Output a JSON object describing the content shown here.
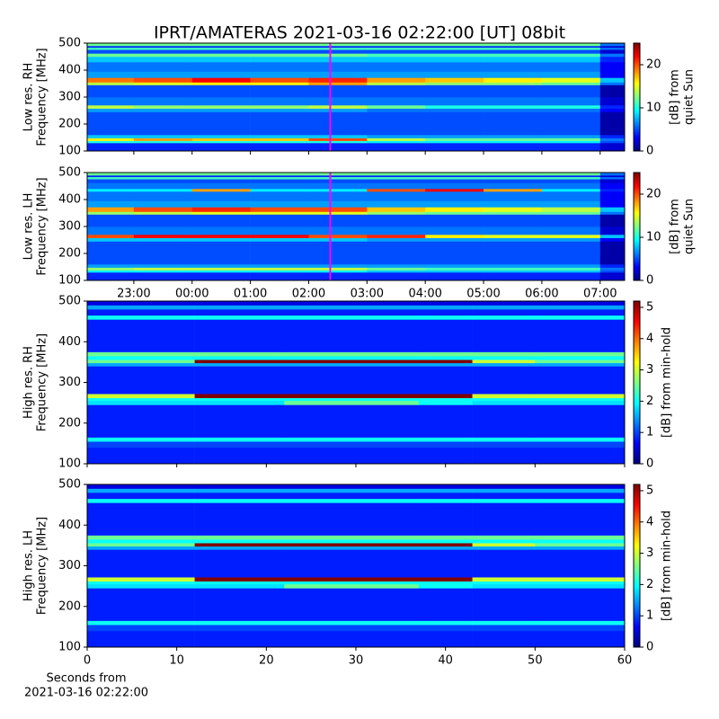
{
  "title": "IPRT/AMATERAS 2021-03-16 02:22:00 [UT]   08bit",
  "chart_data": [
    {
      "type": "heatmap",
      "ylabel_lines": [
        "Low res. RH",
        "Frequency [MHz]"
      ],
      "xlim": [
        22.2,
        31.42
      ],
      "xticks": [
        23,
        24,
        25,
        26,
        27,
        28,
        29,
        30,
        31
      ],
      "show_xtick_labels": false,
      "ylim": [
        100,
        500
      ],
      "yticks": [
        100,
        200,
        300,
        400,
        500
      ],
      "marker_x": 26.37,
      "marker_color": "#ff00ff",
      "clim": [
        0,
        25
      ],
      "cticks": [
        0,
        10,
        20
      ],
      "clabel_lines": [
        "[dB] from",
        "quiet Sun"
      ],
      "colormap": "jet",
      "xbins": [
        22.2,
        23,
        24,
        25,
        26,
        27,
        28,
        29,
        30,
        31,
        31.42
      ],
      "ybins": [
        100,
        130,
        138,
        148,
        160,
        245,
        258,
        270,
        300,
        345,
        355,
        372,
        395,
        430,
        450,
        462,
        476,
        484,
        490,
        500
      ],
      "values": [
        [
          4,
          4,
          4,
          4,
          4,
          4,
          4,
          4,
          4,
          2
        ],
        [
          10,
          10,
          10,
          10,
          10,
          9,
          9,
          9,
          9,
          5
        ],
        [
          16,
          18,
          17,
          17,
          20,
          14,
          12,
          12,
          12,
          6
        ],
        [
          8,
          8,
          8,
          8,
          8,
          7,
          7,
          7,
          7,
          4
        ],
        [
          5,
          5,
          5,
          5,
          5,
          5,
          5,
          5,
          5,
          1
        ],
        [
          7,
          7,
          7,
          7,
          7,
          6,
          6,
          6,
          6,
          3
        ],
        [
          14,
          13,
          13,
          13,
          14,
          12,
          10,
          10,
          10,
          4
        ],
        [
          6,
          6,
          6,
          6,
          6,
          6,
          6,
          6,
          6,
          2
        ],
        [
          5,
          5,
          5,
          5,
          5,
          5,
          5,
          5,
          5,
          1
        ],
        [
          14,
          15,
          16,
          16,
          18,
          14,
          13,
          13,
          12,
          6
        ],
        [
          19,
          20,
          22,
          20,
          21,
          18,
          17,
          16,
          15,
          8
        ],
        [
          7,
          7,
          7,
          7,
          7,
          7,
          7,
          7,
          7,
          3
        ],
        [
          6,
          6,
          6,
          6,
          6,
          6,
          6,
          6,
          6,
          3
        ],
        [
          8,
          8,
          8,
          8,
          8,
          8,
          8,
          8,
          8,
          4
        ],
        [
          12,
          12,
          12,
          12,
          12,
          11,
          11,
          11,
          11,
          6
        ],
        [
          5,
          5,
          5,
          5,
          5,
          5,
          5,
          5,
          5,
          2
        ],
        [
          11,
          11,
          11,
          11,
          11,
          11,
          11,
          11,
          11,
          6
        ],
        [
          4,
          4,
          4,
          4,
          4,
          4,
          4,
          4,
          4,
          2
        ],
        [
          12,
          12,
          12,
          12,
          12,
          12,
          12,
          12,
          12,
          6
        ]
      ]
    },
    {
      "type": "heatmap",
      "ylabel_lines": [
        "Low res. LH",
        "Frequency [MHz]"
      ],
      "xlim": [
        22.2,
        31.42
      ],
      "xticks": [
        {
          "value": 23,
          "label": "23:00"
        },
        {
          "value": 24,
          "label": "00:00"
        },
        {
          "value": 25,
          "label": "01:00"
        },
        {
          "value": 26,
          "label": "02:00"
        },
        {
          "value": 27,
          "label": "03:00"
        },
        {
          "value": 28,
          "label": "04:00"
        },
        {
          "value": 29,
          "label": "05:00"
        },
        {
          "value": 30,
          "label": "06:00"
        },
        {
          "value": 31,
          "label": "07:00"
        }
      ],
      "show_xtick_labels": true,
      "ylim": [
        100,
        500
      ],
      "yticks": [
        100,
        200,
        300,
        400,
        500
      ],
      "marker_x": 26.37,
      "marker_color": "#ff00ff",
      "clim": [
        0,
        25
      ],
      "cticks": [
        0,
        10,
        20
      ],
      "clabel_lines": [
        "[dB] from",
        "quiet Sun"
      ],
      "colormap": "jet",
      "xbins": [
        22.2,
        23,
        24,
        25,
        26,
        27,
        28,
        29,
        30,
        31,
        31.42
      ],
      "ybins": [
        100,
        130,
        138,
        148,
        160,
        245,
        258,
        270,
        300,
        345,
        355,
        372,
        395,
        430,
        440,
        462,
        476,
        484,
        490,
        500
      ],
      "values": [
        [
          4,
          4,
          4,
          4,
          4,
          4,
          4,
          4,
          4,
          2
        ],
        [
          9,
          9,
          9,
          9,
          9,
          8,
          8,
          8,
          8,
          5
        ],
        [
          13,
          14,
          14,
          14,
          14,
          12,
          11,
          11,
          11,
          6
        ],
        [
          7,
          7,
          7,
          7,
          7,
          7,
          7,
          7,
          7,
          4
        ],
        [
          5,
          5,
          5,
          5,
          5,
          5,
          5,
          5,
          5,
          1
        ],
        [
          8,
          8,
          8,
          8,
          8,
          7,
          7,
          7,
          7,
          3
        ],
        [
          20,
          22,
          22,
          22,
          20,
          21,
          16,
          15,
          15,
          8
        ],
        [
          6,
          6,
          6,
          6,
          6,
          6,
          6,
          6,
          6,
          2
        ],
        [
          5,
          5,
          5,
          5,
          5,
          5,
          5,
          5,
          5,
          1
        ],
        [
          13,
          14,
          15,
          15,
          15,
          13,
          12,
          12,
          12,
          6
        ],
        [
          18,
          20,
          21,
          20,
          20,
          17,
          16,
          15,
          14,
          8
        ],
        [
          7,
          7,
          7,
          7,
          7,
          7,
          7,
          7,
          7,
          3
        ],
        [
          6,
          6,
          6,
          6,
          6,
          6,
          6,
          6,
          6,
          3
        ],
        [
          9,
          9,
          18,
          9,
          9,
          20,
          22,
          18,
          9,
          4
        ],
        [
          6,
          6,
          6,
          6,
          6,
          6,
          6,
          6,
          6,
          3
        ],
        [
          5,
          5,
          5,
          5,
          5,
          5,
          5,
          5,
          5,
          2
        ],
        [
          11,
          11,
          11,
          11,
          11,
          11,
          11,
          11,
          11,
          6
        ],
        [
          4,
          4,
          4,
          4,
          4,
          4,
          4,
          4,
          4,
          2
        ],
        [
          12,
          12,
          12,
          12,
          12,
          12,
          12,
          12,
          12,
          6
        ]
      ]
    },
    {
      "type": "heatmap",
      "ylabel_lines": [
        "High res. RH",
        "Frequency [MHz]"
      ],
      "xlim": [
        0,
        60
      ],
      "xticks": [
        0,
        10,
        20,
        30,
        40,
        50,
        60
      ],
      "show_xtick_labels": false,
      "ylim": [
        100,
        500
      ],
      "yticks": [
        100,
        200,
        300,
        400,
        500
      ],
      "clim": [
        0,
        5.2
      ],
      "cticks": [
        0,
        1,
        2,
        3,
        4,
        5
      ],
      "clabel_lines": [
        "[dB] from min-hold"
      ],
      "colormap": "jet",
      "xbins": [
        0,
        12,
        22,
        37,
        43,
        50,
        60
      ],
      "ybins": [
        100,
        140,
        155,
        165,
        245,
        255,
        262,
        272,
        340,
        348,
        356,
        365,
        375,
        455,
        465,
        480,
        490,
        500
      ],
      "values": [
        [
          0.8,
          0.8,
          0.8,
          0.8,
          0.8,
          0.8
        ],
        [
          1,
          1,
          1,
          1,
          1,
          1
        ],
        [
          2,
          2,
          2,
          2,
          2,
          2
        ],
        [
          0.8,
          0.8,
          0.8,
          0.8,
          0.8,
          0.8
        ],
        [
          1.8,
          1.8,
          2.5,
          2,
          1.8,
          1.8
        ],
        [
          2,
          2,
          2,
          2,
          2,
          2
        ],
        [
          3,
          5.2,
          5.2,
          5.2,
          3,
          3
        ],
        [
          0.8,
          0.8,
          0.8,
          0.8,
          0.8,
          0.8
        ],
        [
          1.5,
          1.5,
          1.5,
          1.5,
          1.5,
          1.5
        ],
        [
          2.5,
          5.2,
          5.2,
          5.2,
          3,
          2.5
        ],
        [
          2,
          2,
          2,
          2,
          2,
          2
        ],
        [
          2.5,
          2.5,
          2.5,
          2.5,
          2.5,
          2.5
        ],
        [
          0.8,
          0.8,
          0.8,
          0.8,
          0.8,
          0.8
        ],
        [
          2,
          2,
          2,
          2,
          2,
          2
        ],
        [
          0.8,
          0.8,
          0.8,
          0.8,
          0.8,
          0.8
        ],
        [
          1.5,
          1.5,
          1.5,
          1.5,
          1.5,
          1.5
        ],
        [
          0.5,
          0.5,
          0.5,
          0.5,
          0.5,
          0.5
        ]
      ]
    },
    {
      "type": "heatmap",
      "ylabel_lines": [
        "High res. LH",
        "Frequency [MHz]"
      ],
      "xlim": [
        0,
        60
      ],
      "xticks": [
        0,
        10,
        20,
        30,
        40,
        50,
        60
      ],
      "show_xtick_labels": true,
      "xlabel_lines": [
        "Seconds from",
        "2021-03-16 02:22:00"
      ],
      "ylim": [
        100,
        500
      ],
      "yticks": [
        100,
        200,
        300,
        400,
        500
      ],
      "clim": [
        0,
        5.2
      ],
      "cticks": [
        0,
        1,
        2,
        3,
        4,
        5
      ],
      "clabel_lines": [
        "[dB] from min-hold"
      ],
      "colormap": "jet",
      "xbins": [
        0,
        12,
        22,
        37,
        43,
        50,
        60
      ],
      "ybins": [
        100,
        140,
        155,
        165,
        245,
        255,
        262,
        272,
        340,
        348,
        356,
        365,
        375,
        455,
        465,
        480,
        490,
        500
      ],
      "values": [
        [
          0.8,
          0.8,
          0.8,
          0.8,
          0.8,
          0.8
        ],
        [
          1,
          1,
          1,
          1,
          1,
          1
        ],
        [
          2,
          2,
          2,
          2,
          2,
          2
        ],
        [
          0.8,
          0.8,
          0.8,
          0.8,
          0.8,
          0.8
        ],
        [
          1.8,
          1.8,
          2.5,
          2,
          1.8,
          1.8
        ],
        [
          2,
          2,
          2,
          2,
          2,
          2
        ],
        [
          3,
          5.2,
          5.2,
          5.2,
          3,
          3
        ],
        [
          0.8,
          0.8,
          0.8,
          0.8,
          0.8,
          0.8
        ],
        [
          1.5,
          1.5,
          1.5,
          1.5,
          1.5,
          1.5
        ],
        [
          2.5,
          5.2,
          5.2,
          5.2,
          3,
          2.5
        ],
        [
          2,
          2,
          2,
          2,
          2,
          2
        ],
        [
          2.5,
          2.5,
          2.5,
          2.5,
          2.5,
          2.5
        ],
        [
          0.8,
          0.8,
          0.8,
          0.8,
          0.8,
          0.8
        ],
        [
          2,
          2,
          2,
          2,
          2,
          2
        ],
        [
          0.8,
          0.8,
          0.8,
          0.8,
          0.8,
          0.8
        ],
        [
          1.5,
          1.5,
          1.5,
          1.5,
          1.5,
          1.5
        ],
        [
          0.5,
          0.5,
          0.5,
          0.5,
          0.5,
          0.5
        ]
      ]
    }
  ]
}
